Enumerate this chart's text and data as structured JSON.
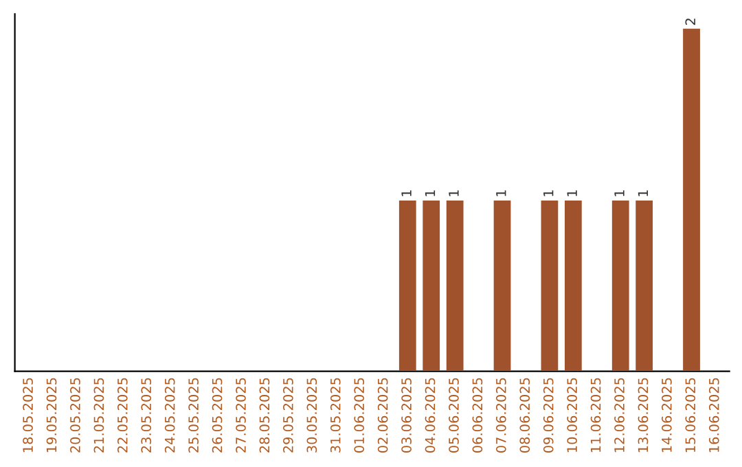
{
  "chart_data": {
    "type": "bar",
    "categories": [
      "18.05.2025",
      "19.05.2025",
      "20.05.2025",
      "21.05.2025",
      "22.05.2025",
      "23.05.2025",
      "24.05.2025",
      "25.05.2025",
      "26.05.2025",
      "27.05.2025",
      "28.05.2025",
      "29.05.2025",
      "30.05.2025",
      "31.05.2025",
      "01.06.2025",
      "02.06.2025",
      "03.06.2025",
      "04.06.2025",
      "05.06.2025",
      "06.06.2025",
      "07.06.2025",
      "08.06.2025",
      "09.06.2025",
      "10.06.2025",
      "11.06.2025",
      "12.06.2025",
      "13.06.2025",
      "14.06.2025",
      "15.06.2025",
      "16.06.2025"
    ],
    "values": [
      null,
      null,
      null,
      null,
      null,
      null,
      null,
      null,
      null,
      null,
      null,
      null,
      null,
      null,
      null,
      null,
      1,
      1,
      1,
      null,
      1,
      null,
      1,
      1,
      null,
      1,
      1,
      null,
      2,
      null
    ],
    "value_labels": [
      null,
      null,
      null,
      null,
      null,
      null,
      null,
      null,
      null,
      null,
      null,
      null,
      null,
      null,
      null,
      null,
      "1",
      "1",
      "1",
      null,
      "1",
      null,
      "1",
      "1",
      null,
      "1",
      "1",
      null,
      "2",
      null
    ],
    "color": "#a0522d",
    "ylim": [
      0,
      2.08
    ],
    "grid": false,
    "legend": false
  }
}
